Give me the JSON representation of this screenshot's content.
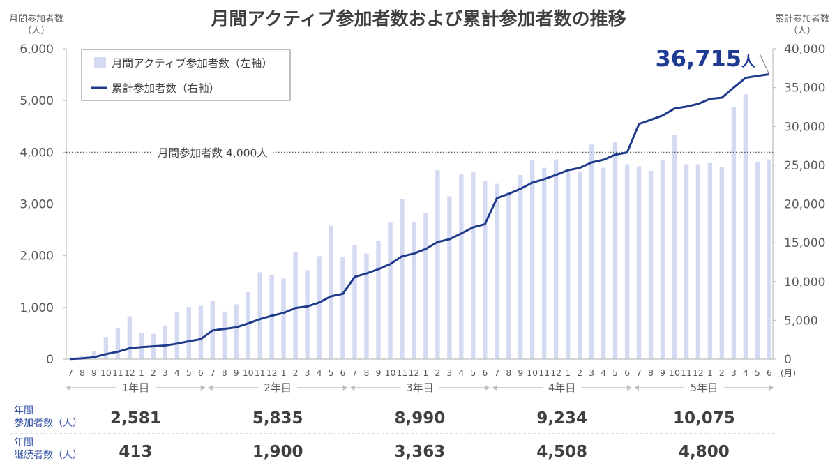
{
  "chart_data": {
    "type": "bar",
    "title": "月間アクティブ参加者数および累計参加者数の推移",
    "categories": [
      "7",
      "8",
      "9",
      "10",
      "11",
      "12",
      "1",
      "2",
      "3",
      "4",
      "5",
      "6",
      "7",
      "8",
      "9",
      "10",
      "11",
      "12",
      "1",
      "2",
      "3",
      "4",
      "5",
      "6",
      "7",
      "8",
      "9",
      "10",
      "11",
      "12",
      "1",
      "2",
      "3",
      "4",
      "5",
      "6",
      "7",
      "8",
      "9",
      "10",
      "11",
      "12",
      "1",
      "2",
      "3",
      "4",
      "5",
      "6",
      "7",
      "8",
      "9",
      "10",
      "11",
      "12",
      "1",
      "2",
      "3",
      "4",
      "5",
      "6"
    ],
    "x_unit": "(月)",
    "year_groups": [
      "1年目",
      "2年目",
      "3年目",
      "4年目",
      "5年目"
    ],
    "y_left": {
      "title": [
        "月間参加者数",
        "（人）"
      ],
      "range": [
        0,
        6000
      ],
      "tick_labels": [
        "0",
        "1,000",
        "2,000",
        "3,000",
        "4,000",
        "5,000",
        "6,000"
      ]
    },
    "y_right": {
      "title": [
        "累計参加者数",
        "（人）"
      ],
      "range": [
        0,
        40000
      ],
      "tick_labels": [
        "0",
        "5,000",
        "10,000",
        "15,000",
        "20,000",
        "25,000",
        "30,000",
        "35,000",
        "40,000"
      ]
    },
    "series": [
      {
        "name": "月間アクティブ参加者数（左軸）",
        "type": "bar",
        "axis": "left",
        "color": "#d5daf3",
        "values": [
          30,
          70,
          150,
          430,
          600,
          830,
          500,
          490,
          650,
          900,
          1010,
          1030,
          1130,
          920,
          1060,
          1300,
          1680,
          1620,
          1560,
          2070,
          1720,
          1990,
          2580,
          1980,
          2200,
          2040,
          2280,
          2640,
          3090,
          2650,
          2830,
          3650,
          3150,
          3570,
          3610,
          3440,
          3390,
          3230,
          3560,
          3840,
          3700,
          3860,
          3610,
          3630,
          4150,
          3700,
          4190,
          3770,
          3730,
          3640,
          3840,
          4340,
          3770,
          3770,
          3790,
          3720,
          4880,
          5120,
          3820,
          3860
        ]
      },
      {
        "name": "累計参加者数（右軸）",
        "type": "line",
        "axis": "right",
        "color": "#1f3a8a",
        "values": [
          30,
          100,
          250,
          650,
          950,
          1400,
          1550,
          1650,
          1750,
          2000,
          2300,
          2581,
          3700,
          3900,
          4100,
          4600,
          5150,
          5600,
          5950,
          6600,
          6800,
          7300,
          8100,
          8416,
          10600,
          11050,
          11600,
          12250,
          13250,
          13600,
          14200,
          15100,
          15450,
          16200,
          17000,
          17406,
          20750,
          21300,
          21950,
          22750,
          23200,
          23750,
          24350,
          24650,
          25350,
          25700,
          26350,
          26640,
          30300,
          30850,
          31400,
          32300,
          32550,
          32900,
          33550,
          33700,
          35000,
          36250,
          36500,
          36715
        ]
      }
    ],
    "reference_line": {
      "axis": "left",
      "value": 4000,
      "label": "月間参加者数 4,000人"
    },
    "callout": {
      "value": "36,715",
      "unit": "人",
      "color": "#1f3a93"
    },
    "legend": {
      "position": "top-left"
    },
    "grid": false
  },
  "summary_table": {
    "label_color": "#2f4fa2",
    "rows": [
      {
        "label": [
          "年間",
          "参加者数（人）"
        ],
        "values": [
          "2,581",
          "5,835",
          "8,990",
          "9,234",
          "10,075"
        ]
      },
      {
        "label": [
          "年間",
          "継続者数（人）"
        ],
        "values": [
          "413",
          "1,900",
          "3,363",
          "4,508",
          "4,800"
        ]
      }
    ]
  }
}
